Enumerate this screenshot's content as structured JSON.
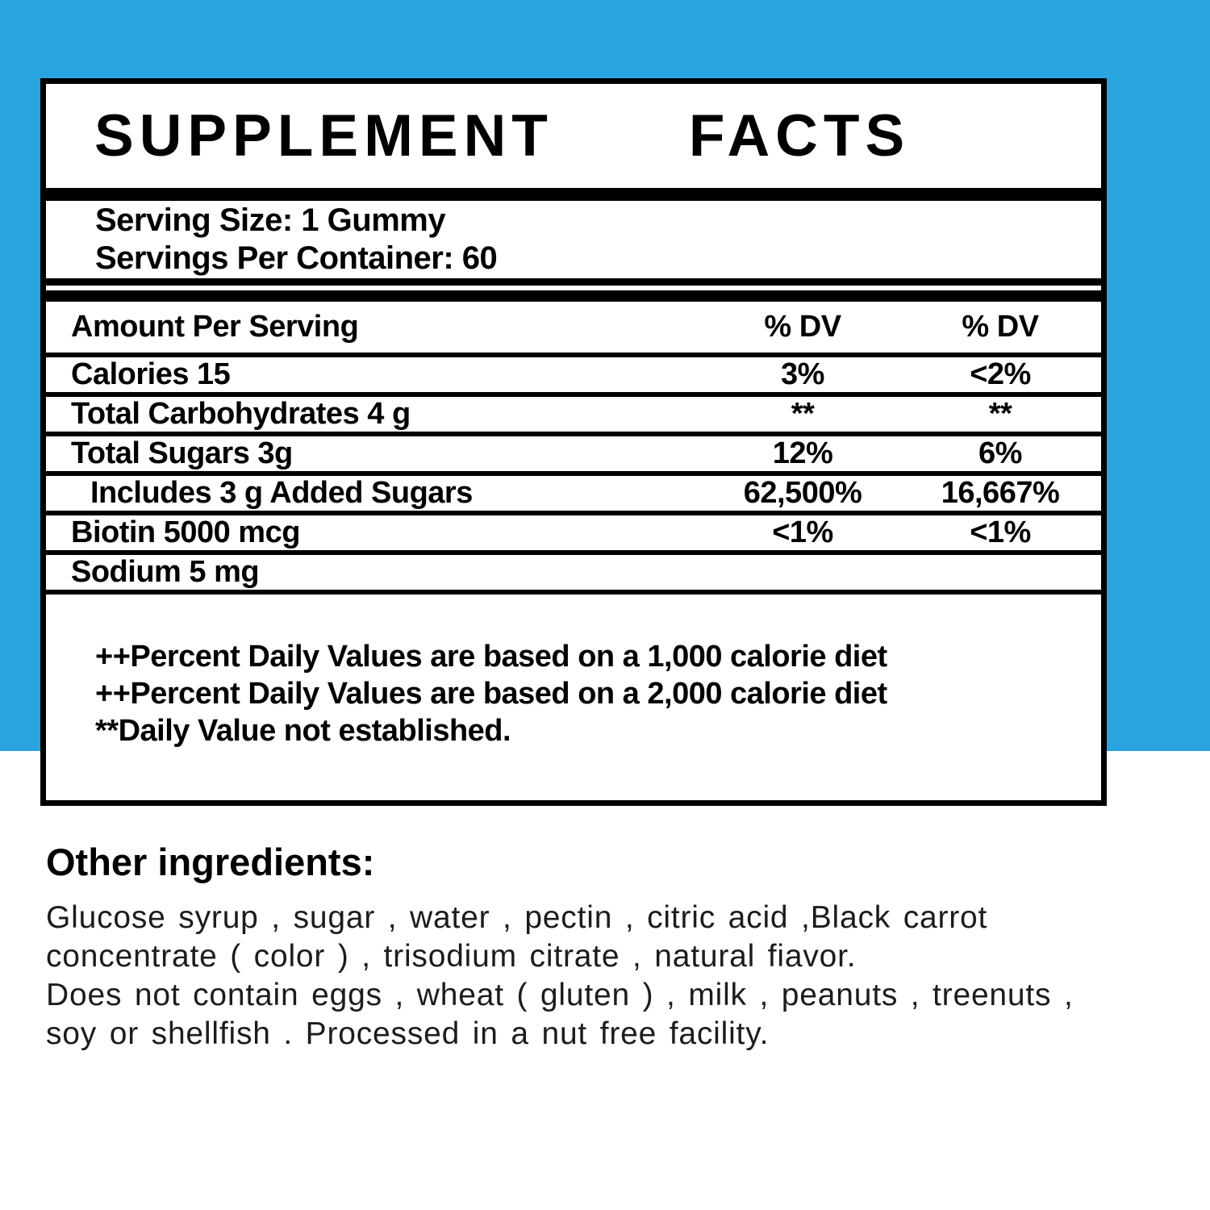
{
  "colors": {
    "background_blue": "#29A4DF",
    "panel_background": "#FFFFFF",
    "border_black": "#000000"
  },
  "panel": {
    "title_word1": "SUPPLEMENT",
    "title_word2": "FACTS",
    "serving": {
      "line1": "Serving Size: 1 Gummy",
      "line2": "Servings Per Container: 60"
    },
    "table": {
      "header": {
        "label": "Amount Per Serving",
        "col1": "% DV",
        "col2": "% DV"
      },
      "rows": [
        {
          "label": "Calories 15",
          "dv1": "3%",
          "dv2": "<2%"
        },
        {
          "label": "Total Carbohydrates 4 g",
          "dv1": "**",
          "dv2": "**"
        },
        {
          "label": "Total Sugars 3g",
          "dv1": "12%",
          "dv2": "6%"
        },
        {
          "label": "Includes 3 g Added Sugars",
          "dv1": "62,500%",
          "dv2": "16,667%"
        },
        {
          "label": "Biotin 5000 mcg",
          "dv1": "<1%",
          "dv2": "<1%"
        },
        {
          "label": "Sodium 5 mg",
          "dv1": "",
          "dv2": ""
        }
      ]
    },
    "footnotes": [
      "++Percent Daily Values are based on a 1,000 calorie diet",
      "++Percent Daily Values are based on a 2,000 calorie diet",
      "**Daily Value not established."
    ]
  },
  "other_ingredients": {
    "heading": "Other ingredients:",
    "lines": [
      "Glucose syrup , sugar , water , pectin , citric acid ,Black carrot",
      "concentrate ( color ) , trisodium citrate , natural fiavor.",
      "Does not contain eggs , wheat ( gluten ) , milk , peanuts , treenuts ,",
      "soy or shellfish . Processed in a nut free facility."
    ]
  }
}
